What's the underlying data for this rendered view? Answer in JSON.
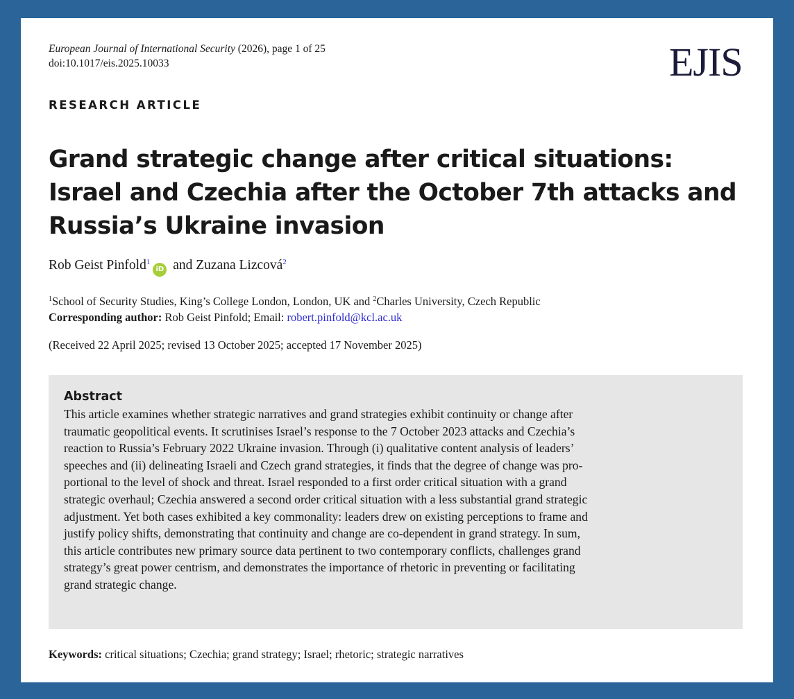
{
  "header": {
    "journal": "European Journal of International Security",
    "page_info": " (2026), page 1 of 25",
    "doi": "doi:10.1017/eis.2025.10033",
    "logo": "EJIS"
  },
  "article_type": "RESEARCH ARTICLE",
  "title": "Grand strategic change after critical situations: Israel and Czechia after the October 7th attacks and Russia’s Ukraine invasion",
  "authors": {
    "author1": "Rob Geist Pinfold",
    "author1_sup": "1",
    "orcid_icon": "orcid-icon",
    "connector": " and ",
    "author2": "Zuzana Lizcová",
    "author2_sup": "2"
  },
  "affiliations": {
    "sup1": "1",
    "aff1": "School of Security Studies, King’s College London, London, UK and ",
    "sup2": "2",
    "aff2": "Charles University, Czech Republic"
  },
  "correspondence": {
    "label": "Corresponding author:",
    "text": " Rob Geist Pinfold; Email: ",
    "email": "robert.pinfold@kcl.ac.uk"
  },
  "received": "(Received 22 April 2025; revised 13 October 2025; accepted 17 November 2025)",
  "abstract": {
    "heading": "Abstract",
    "lines": [
      "This article examines whether strategic narratives and grand strategies exhibit continuity or change after",
      "traumatic geopolitical events. It scrutinises Israel’s response to the 7 October 2023 attacks and Czechia’s",
      "reaction to Russia’s February 2022 Ukraine invasion. Through (i) qualitative content analysis of leaders’",
      "speeches and (ii) delineating Israeli and Czech grand strategies, it finds that the degree of change was pro-",
      "portional to the level of shock and threat. Israel responded to a first order critical situation with a grand",
      "strategic overhaul; Czechia answered a second order critical situation with a less substantial grand strategic",
      "adjustment. Yet both cases exhibited a key commonality: leaders drew on existing perceptions to frame and",
      "justify policy shifts, demonstrating that continuity and change are co-dependent in grand strategy. In sum,",
      "this article contributes new primary source data pertinent to two contemporary conflicts, challenges grand",
      "strategy’s great power centrism, and demonstrates the importance of rhetoric in preventing or facilitating",
      "grand strategic change."
    ]
  },
  "keywords": {
    "label": "Keywords:",
    "text": " critical situations; Czechia; grand strategy; Israel; rhetoric; strategic narratives"
  },
  "colors": {
    "frame": "#2a6499",
    "abstract_bg": "#e6e6e6",
    "link": "#2d2dd0",
    "orcid": "#a6ce39"
  }
}
